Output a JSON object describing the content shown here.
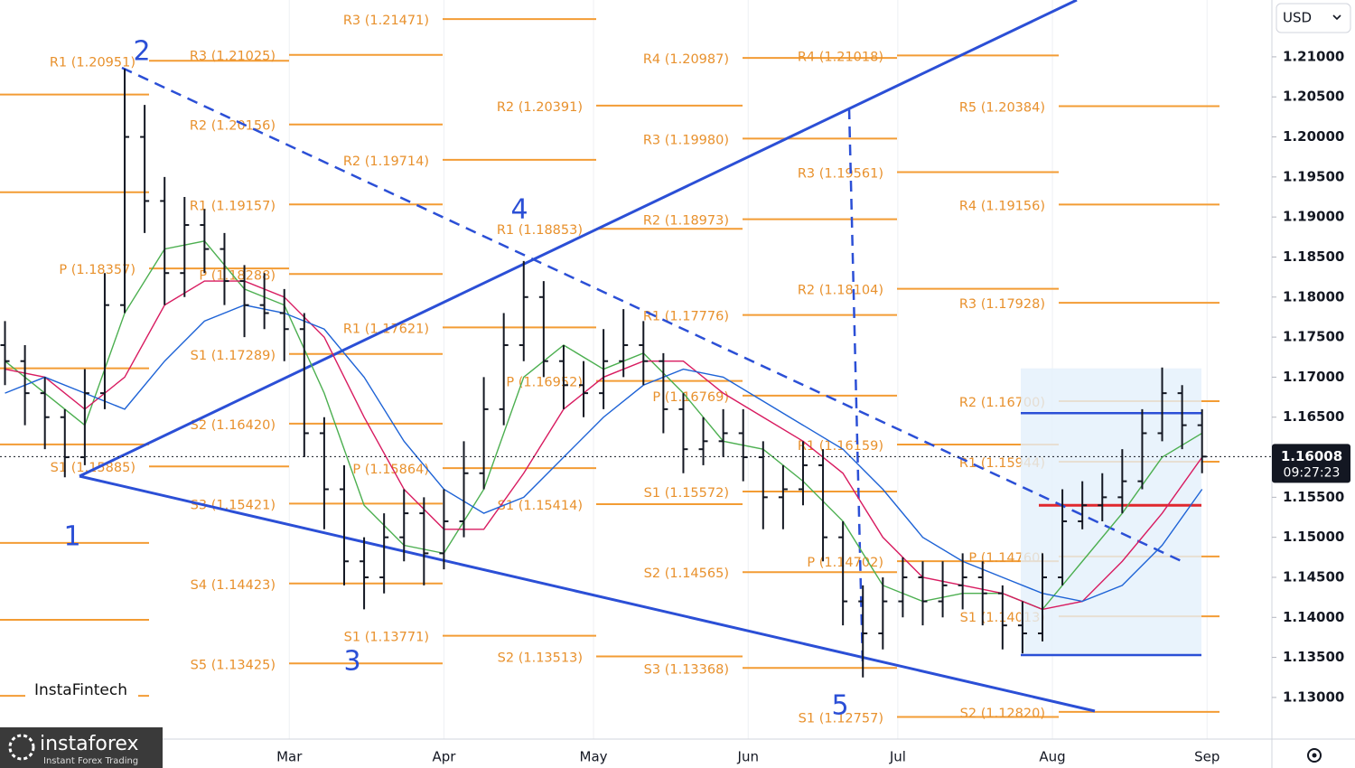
{
  "chart_data": {
    "type": "ohlc",
    "currency": "USD",
    "last_price": 1.16008,
    "timer": "09:27:23",
    "brand": "InstaFintech",
    "logo": "instaforex",
    "logo_tagline": "Instant Forex Trading",
    "waves": [
      "1",
      "2",
      "3",
      "4",
      "5"
    ],
    "grid": true,
    "bar_color": "#131722",
    "level_color": "#f39c34",
    "trend_color": "#2b4fd6",
    "xlim": [
      2,
      257
    ],
    "xticks": [
      {
        "value": 60,
        "label": "Mar"
      },
      {
        "value": 91,
        "label": "Apr"
      },
      {
        "value": 121,
        "label": "May"
      },
      {
        "value": 152,
        "label": "Jun"
      },
      {
        "value": 182,
        "label": "Jul"
      },
      {
        "value": 213,
        "label": "Aug"
      },
      {
        "value": 244,
        "label": "Sep"
      }
    ],
    "ylim": [
      1.1248,
      1.2171
    ],
    "yticks": [
      {
        "value": 1.13,
        "label": "1.13000"
      },
      {
        "value": 1.135,
        "label": "1.13500"
      },
      {
        "value": 1.14,
        "label": "1.14000"
      },
      {
        "value": 1.145,
        "label": "1.14500"
      },
      {
        "value": 1.15,
        "label": "1.15000"
      },
      {
        "value": 1.155,
        "label": "1.15500"
      },
      {
        "value": 1.16,
        "label": "1.16000"
      },
      {
        "value": 1.165,
        "label": "1.16500"
      },
      {
        "value": 1.17,
        "label": "1.17000"
      },
      {
        "value": 1.175,
        "label": "1.17500"
      },
      {
        "value": 1.18,
        "label": "1.18000"
      },
      {
        "value": 1.185,
        "label": "1.18500"
      },
      {
        "value": 1.19,
        "label": "1.19000"
      },
      {
        "value": 1.195,
        "label": "1.19500"
      },
      {
        "value": 1.2,
        "label": "1.20000"
      },
      {
        "value": 1.205,
        "label": "1.20500"
      },
      {
        "value": 1.21,
        "label": "1.21000"
      }
    ],
    "ohlc": {
      "x": [
        3,
        7,
        11,
        15,
        19,
        23,
        27,
        31,
        35,
        39,
        43,
        47,
        51,
        55,
        59,
        63,
        67,
        71,
        75,
        79,
        83,
        87,
        91,
        95,
        99,
        103,
        107,
        111,
        115,
        119,
        123,
        127,
        131,
        135,
        139,
        143,
        147,
        151,
        155,
        159,
        163,
        167,
        171,
        175,
        179,
        183,
        187,
        191,
        195,
        199,
        203,
        207,
        211,
        215,
        219,
        223,
        227,
        231,
        235,
        239,
        243
      ],
      "open": [
        1.174,
        1.172,
        1.168,
        1.165,
        1.16,
        1.168,
        1.179,
        1.2,
        1.192,
        1.183,
        1.189,
        1.186,
        1.182,
        1.179,
        1.178,
        1.176,
        1.163,
        1.156,
        1.147,
        1.145,
        1.15,
        1.153,
        1.148,
        1.152,
        1.158,
        1.166,
        1.174,
        1.18,
        1.172,
        1.169,
        1.168,
        1.172,
        1.174,
        1.172,
        1.166,
        1.161,
        1.162,
        1.163,
        1.16,
        1.155,
        1.156,
        1.159,
        1.15,
        1.142,
        1.138,
        1.142,
        1.145,
        1.142,
        1.144,
        1.145,
        1.143,
        1.139,
        1.138,
        1.145,
        1.152,
        1.154,
        1.155,
        1.157,
        1.163,
        1.168,
        1.164
      ],
      "high": [
        1.177,
        1.174,
        1.17,
        1.166,
        1.171,
        1.183,
        1.2085,
        1.204,
        1.195,
        1.1925,
        1.191,
        1.188,
        1.184,
        1.183,
        1.181,
        1.178,
        1.165,
        1.159,
        1.15,
        1.153,
        1.156,
        1.155,
        1.156,
        1.162,
        1.17,
        1.178,
        1.1845,
        1.182,
        1.174,
        1.172,
        1.176,
        1.1785,
        1.177,
        1.173,
        1.168,
        1.165,
        1.166,
        1.166,
        1.162,
        1.159,
        1.162,
        1.161,
        1.152,
        1.144,
        1.145,
        1.1475,
        1.147,
        1.147,
        1.148,
        1.147,
        1.144,
        1.142,
        1.148,
        1.156,
        1.157,
        1.158,
        1.161,
        1.166,
        1.1712,
        1.169,
        1.166
      ],
      "low": [
        1.169,
        1.164,
        1.161,
        1.1575,
        1.159,
        1.166,
        1.178,
        1.188,
        1.179,
        1.18,
        1.183,
        1.179,
        1.175,
        1.176,
        1.172,
        1.16,
        1.151,
        1.144,
        1.141,
        1.143,
        1.147,
        1.144,
        1.146,
        1.15,
        1.156,
        1.164,
        1.172,
        1.17,
        1.166,
        1.165,
        1.166,
        1.17,
        1.169,
        1.163,
        1.158,
        1.159,
        1.16,
        1.157,
        1.151,
        1.151,
        1.154,
        1.147,
        1.139,
        1.1325,
        1.136,
        1.14,
        1.139,
        1.14,
        1.141,
        1.139,
        1.136,
        1.1355,
        1.137,
        1.144,
        1.151,
        1.152,
        1.153,
        1.156,
        1.162,
        1.161,
        1.158
      ],
      "close": [
        1.172,
        1.168,
        1.165,
        1.16,
        1.168,
        1.179,
        1.2,
        1.192,
        1.183,
        1.189,
        1.186,
        1.182,
        1.179,
        1.178,
        1.176,
        1.163,
        1.156,
        1.147,
        1.145,
        1.15,
        1.153,
        1.148,
        1.152,
        1.158,
        1.166,
        1.174,
        1.18,
        1.172,
        1.169,
        1.168,
        1.172,
        1.174,
        1.172,
        1.166,
        1.161,
        1.162,
        1.163,
        1.16,
        1.155,
        1.156,
        1.159,
        1.15,
        1.142,
        1.138,
        1.142,
        1.145,
        1.142,
        1.144,
        1.145,
        1.143,
        1.139,
        1.138,
        1.145,
        1.152,
        1.154,
        1.155,
        1.157,
        1.163,
        1.168,
        1.164,
        1.16008
      ]
    },
    "ma_x": [
      3,
      11,
      19,
      27,
      35,
      43,
      51,
      59,
      67,
      75,
      83,
      91,
      99,
      107,
      115,
      123,
      131,
      139,
      147,
      155,
      163,
      171,
      179,
      187,
      195,
      203,
      211,
      219,
      227,
      235,
      243
    ],
    "ma": [
      {
        "color": "#4caf50",
        "values": [
          1.172,
          1.168,
          1.164,
          1.178,
          1.186,
          1.187,
          1.181,
          1.179,
          1.168,
          1.154,
          1.149,
          1.148,
          1.156,
          1.17,
          1.174,
          1.171,
          1.173,
          1.168,
          1.162,
          1.161,
          1.157,
          1.152,
          1.144,
          1.142,
          1.143,
          1.143,
          1.141,
          1.147,
          1.153,
          1.16,
          1.163
        ]
      },
      {
        "color": "#d81b60",
        "values": [
          1.171,
          1.17,
          1.166,
          1.17,
          1.179,
          1.182,
          1.182,
          1.18,
          1.175,
          1.165,
          1.156,
          1.151,
          1.151,
          1.158,
          1.166,
          1.17,
          1.172,
          1.172,
          1.168,
          1.165,
          1.162,
          1.158,
          1.15,
          1.145,
          1.144,
          1.143,
          1.141,
          1.142,
          1.147,
          1.153,
          1.16
        ]
      },
      {
        "color": "#1e63d6",
        "values": [
          1.168,
          1.17,
          1.168,
          1.166,
          1.172,
          1.177,
          1.179,
          1.178,
          1.176,
          1.17,
          1.162,
          1.156,
          1.153,
          1.155,
          1.16,
          1.165,
          1.169,
          1.171,
          1.17,
          1.167,
          1.164,
          1.161,
          1.156,
          1.15,
          1.147,
          1.145,
          1.143,
          1.142,
          1.144,
          1.149,
          1.156
        ]
      }
    ],
    "profile": {
      "top": 1.1711,
      "bottom": 1.1353,
      "poc": 1.154,
      "value_high": 1.1655
    },
    "pivots": [
      {
        "levels": [
          {
            "value": 1.2053
          },
          {
            "value": 1.1931
          },
          {
            "value": 1.1711
          },
          {
            "value": 1.1616
          },
          {
            "value": 1.1493
          },
          {
            "value": 1.1397
          },
          {
            "value": 1.1302
          }
        ]
      },
      {
        "levels": [
          {
            "label": "R1 (1.20951)",
            "value": 1.20951
          },
          {
            "label": "P (1.18357)",
            "value": 1.18357
          },
          {
            "label": "S1 (1.15885)",
            "value": 1.15885
          }
        ]
      },
      {
        "levels": [
          {
            "label": "R3 (1.21025)",
            "value": 1.21025
          },
          {
            "label": "R2 (1.20156)",
            "value": 1.20156
          },
          {
            "label": "R1 (1.19157)",
            "value": 1.19157
          },
          {
            "label": "P (1.18288)",
            "value": 1.18288
          },
          {
            "label": "S1 (1.17289)",
            "value": 1.17289
          },
          {
            "label": "S2 (1.16420)",
            "value": 1.1642
          },
          {
            "label": "S3 (1.15421)",
            "value": 1.15421
          },
          {
            "label": "S4 (1.14423)",
            "value": 1.14423
          },
          {
            "label": "S5 (1.13425)",
            "value": 1.13425
          }
        ]
      },
      {
        "levels": [
          {
            "label": "R3 (1.21471)",
            "value": 1.21471
          },
          {
            "label": "R2 (1.19714)",
            "value": 1.19714
          },
          {
            "label": "R1 (1.17621)",
            "value": 1.17621
          },
          {
            "label": "P (1.15864)",
            "value": 1.15864
          },
          {
            "label": "S1 (1.13771)",
            "value": 1.13771
          }
        ]
      },
      {
        "levels": [
          {
            "label": "R2 (1.20391)",
            "value": 1.20391
          },
          {
            "label": "R1 (1.18853)",
            "value": 1.18853
          },
          {
            "label": "P (1.16952)",
            "value": 1.16952
          },
          {
            "label": "S1 (1.15414)",
            "value": 1.15414
          },
          {
            "label": "S2 (1.13513)",
            "value": 1.13513
          }
        ]
      },
      {
        "levels": [
          {
            "label": "R4 (1.20987)",
            "value": 1.20987
          },
          {
            "label": "R3 (1.19980)",
            "value": 1.1998
          },
          {
            "label": "R2 (1.18973)",
            "value": 1.18973
          },
          {
            "label": "R1 (1.17776)",
            "value": 1.17776
          },
          {
            "label": "P (1.16769)",
            "value": 1.16769
          },
          {
            "label": "S1 (1.15572)",
            "value": 1.15572
          },
          {
            "label": "S2 (1.14565)",
            "value": 1.14565
          },
          {
            "label": "S3 (1.13368)",
            "value": 1.13368
          }
        ]
      },
      {
        "levels": [
          {
            "label": "R4 (1.21018)",
            "value": 1.21018
          },
          {
            "label": "R3 (1.19561)",
            "value": 1.19561
          },
          {
            "label": "R2 (1.18104)",
            "value": 1.18104
          },
          {
            "label": "R1 (1.16159)",
            "value": 1.16159
          },
          {
            "label": "P (1.14702)",
            "value": 1.14702
          },
          {
            "label": "S1 (1.12757)",
            "value": 1.12757
          }
        ]
      },
      {
        "levels": [
          {
            "label": "R5 (1.20384)",
            "value": 1.20384
          },
          {
            "label": "R4 (1.19156)",
            "value": 1.19156
          },
          {
            "label": "R3 (1.17928)",
            "value": 1.17928
          },
          {
            "label": "R2 (1.16700)",
            "value": 1.167
          },
          {
            "label": "R1 (1.15944)",
            "value": 1.15944
          },
          {
            "label": "P (1.14760)",
            "value": 1.1476
          },
          {
            "label": "S1 (1.14013)",
            "value": 1.14013
          },
          {
            "label": "S2 (1.12820)",
            "value": 1.1282
          }
        ]
      }
    ]
  }
}
